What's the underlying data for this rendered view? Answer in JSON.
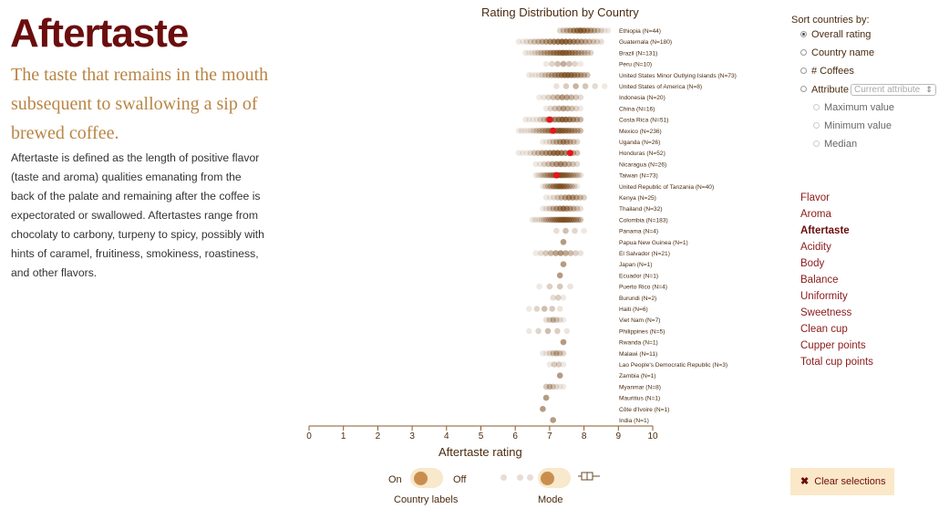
{
  "title": "Aftertaste",
  "subtitle": "The taste that remains in the mouth subsequent to swallowing a sip of brewed coffee.",
  "description": "Aftertaste is defined as the length of positive flavor (taste and aroma) qualities emanating from the back of the palate and remaining after the coffee is expectorated or swallowed. Aftertastes range from chocolaty to carbony, turpeny to spicy, possibly with hints of caramel, fruitiness, smokiness, roastiness, and other flavors.",
  "controls": {
    "country_labels": {
      "on": "On",
      "off": "Off",
      "caption": "Country labels"
    },
    "mode": {
      "caption": "Mode"
    }
  },
  "sort": {
    "title": "Sort countries by:",
    "options": [
      "Overall rating",
      "Country name",
      "# Coffees",
      "Attribute"
    ],
    "selected": "Overall rating",
    "attribute_placeholder": "Current attribute",
    "sub_options": [
      "Maximum value",
      "Minimum value",
      "Median"
    ]
  },
  "attributes": {
    "items": [
      "Flavor",
      "Aroma",
      "Aftertaste",
      "Acidity",
      "Body",
      "Balance",
      "Uniformity",
      "Sweetness",
      "Clean cup",
      "Cupper points",
      "Total cup points"
    ],
    "selected": "Aftertaste"
  },
  "clear_button": "Clear selections",
  "colors": {
    "dot": "#7a4a1c",
    "highlight": "#e8151b",
    "axis": "#8b5a2b",
    "title": "#6b0d0d"
  },
  "chart_data": {
    "type": "scatter",
    "title": "Rating Distribution by Country",
    "xlabel": "Aftertaste rating",
    "xlim": [
      0,
      10
    ],
    "xticks": [
      0,
      1,
      2,
      3,
      4,
      5,
      6,
      7,
      8,
      9,
      10
    ],
    "countries": [
      {
        "label": "Ethiopia (N=44)",
        "min": 7.3,
        "max": 8.7,
        "center": 7.9
      },
      {
        "label": "Guatemala (N=180)",
        "min": 6.1,
        "max": 8.5,
        "center": 7.4
      },
      {
        "label": "Brazil (N=131)",
        "min": 6.3,
        "max": 8.2,
        "center": 7.4
      },
      {
        "label": "Peru (N=10)",
        "min": 6.9,
        "max": 7.9,
        "center": 7.4
      },
      {
        "label": "United States Minor Outlying Islands (N=73)",
        "min": 6.4,
        "max": 8.1,
        "center": 7.5
      },
      {
        "label": "United States of America (N=8)",
        "min": 7.2,
        "max": 8.6,
        "center": 7.8
      },
      {
        "label": "Indonesia (N=20)",
        "min": 6.7,
        "max": 7.9,
        "center": 7.4
      },
      {
        "label": "China (N=16)",
        "min": 6.9,
        "max": 7.9,
        "center": 7.4
      },
      {
        "label": "Costa Rica (N=51)",
        "min": 6.3,
        "max": 7.9,
        "center": 7.4,
        "highlight": [
          7.0
        ]
      },
      {
        "label": "Mexico (N=236)",
        "min": 6.1,
        "max": 7.9,
        "center": 7.3,
        "highlight": [
          7.1
        ]
      },
      {
        "label": "Uganda (N=26)",
        "min": 6.8,
        "max": 7.8,
        "center": 7.4
      },
      {
        "label": "Honduras (N=52)",
        "min": 6.1,
        "max": 7.8,
        "center": 7.2,
        "highlight": [
          7.6
        ]
      },
      {
        "label": "Nicaragua (N=26)",
        "min": 6.6,
        "max": 7.8,
        "center": 7.3
      },
      {
        "label": "Taiwan (N=73)",
        "min": 6.6,
        "max": 7.9,
        "center": 7.3,
        "highlight": [
          7.2
        ]
      },
      {
        "label": "United Republic of Tanzania (N=40)",
        "min": 6.8,
        "max": 7.8,
        "center": 7.3
      },
      {
        "label": "Kenya (N=25)",
        "min": 6.9,
        "max": 8.0,
        "center": 7.6
      },
      {
        "label": "Thailand (N=32)",
        "min": 6.8,
        "max": 7.9,
        "center": 7.4
      },
      {
        "label": "Colombia (N=183)",
        "min": 6.5,
        "max": 7.9,
        "center": 7.4
      },
      {
        "label": "Panama (N=4)",
        "min": 7.2,
        "max": 8.0,
        "center": 7.5
      },
      {
        "label": "Papua New Guinea (N=1)",
        "min": 7.4,
        "max": 7.4,
        "center": 7.4
      },
      {
        "label": "El Salvador (N=21)",
        "min": 6.6,
        "max": 7.9,
        "center": 7.3
      },
      {
        "label": "Japan (N=1)",
        "min": 7.4,
        "max": 7.4,
        "center": 7.4
      },
      {
        "label": "Ecuador (N=1)",
        "min": 7.3,
        "max": 7.3,
        "center": 7.3
      },
      {
        "label": "Puerto Rico (N=4)",
        "min": 6.7,
        "max": 7.6,
        "center": 7.2
      },
      {
        "label": "Burundi (N=2)",
        "min": 7.1,
        "max": 7.4,
        "center": 7.2
      },
      {
        "label": "Haiti (N=6)",
        "min": 6.4,
        "max": 7.3,
        "center": 6.9
      },
      {
        "label": "Viet Nam (N=7)",
        "min": 6.9,
        "max": 7.4,
        "center": 7.1
      },
      {
        "label": "Philippines (N=5)",
        "min": 6.4,
        "max": 7.5,
        "center": 7.0
      },
      {
        "label": "Rwanda (N=1)",
        "min": 7.4,
        "max": 7.4,
        "center": 7.4
      },
      {
        "label": "Malawi (N=11)",
        "min": 6.8,
        "max": 7.4,
        "center": 7.2
      },
      {
        "label": "Lao People's Democratic Republic (N=3)",
        "min": 7.0,
        "max": 7.4,
        "center": 7.2
      },
      {
        "label": "Zambia (N=1)",
        "min": 7.3,
        "max": 7.3,
        "center": 7.3
      },
      {
        "label": "Myanmar (N=8)",
        "min": 6.9,
        "max": 7.4,
        "center": 7.0
      },
      {
        "label": "Mauritius (N=1)",
        "min": 6.9,
        "max": 6.9,
        "center": 6.9
      },
      {
        "label": "Côte d'Ivoire (N=1)",
        "min": 6.8,
        "max": 6.8,
        "center": 6.8
      },
      {
        "label": "India (N=1)",
        "min": 7.1,
        "max": 7.1,
        "center": 7.1
      }
    ]
  }
}
